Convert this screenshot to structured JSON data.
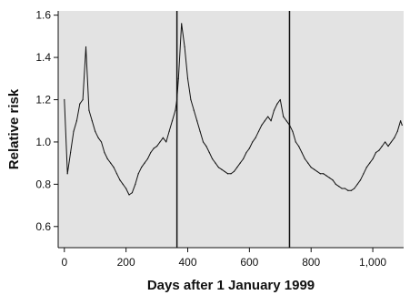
{
  "chart_data": {
    "type": "line",
    "title": "",
    "xlabel": "Days after 1 January 1999",
    "ylabel": "Relative risk",
    "xlim": [
      -20,
      1100
    ],
    "ylim": [
      0.5,
      1.62
    ],
    "x_ticks": [
      0,
      200,
      400,
      600,
      800,
      1000
    ],
    "x_tick_labels": [
      "0",
      "200",
      "400",
      "600",
      "800",
      "1,000"
    ],
    "y_ticks": [
      0.6,
      0.8,
      1.0,
      1.2,
      1.4,
      1.6
    ],
    "y_tick_labels": [
      "0.6",
      "0.8",
      "1.0",
      "1.2",
      "1.4",
      "1.6"
    ],
    "vertical_lines_x": [
      365,
      730
    ],
    "grid": false,
    "plot_background": "#e3e3e3",
    "line_color": "#111111",
    "series": [
      {
        "x": [
          0,
          10,
          20,
          30,
          40,
          50,
          60,
          70,
          80,
          90,
          100,
          110,
          120,
          130,
          140,
          150,
          160,
          170,
          180,
          190,
          200,
          210,
          220,
          230,
          240,
          250,
          260,
          270,
          280,
          290,
          300,
          310,
          320,
          330,
          340,
          350,
          360,
          365,
          370,
          380,
          390,
          400,
          410,
          420,
          430,
          440,
          450,
          460,
          470,
          480,
          490,
          500,
          510,
          520,
          530,
          540,
          550,
          560,
          570,
          580,
          590,
          600,
          610,
          620,
          630,
          640,
          650,
          660,
          670,
          680,
          690,
          700,
          710,
          720,
          730,
          740,
          750,
          760,
          770,
          780,
          790,
          800,
          810,
          820,
          830,
          840,
          850,
          860,
          870,
          880,
          890,
          900,
          910,
          920,
          930,
          940,
          950,
          960,
          970,
          980,
          990,
          1000,
          1010,
          1020,
          1030,
          1040,
          1050,
          1060,
          1070,
          1080,
          1090,
          1095
        ],
        "y": [
          1.2,
          0.85,
          0.95,
          1.05,
          1.1,
          1.18,
          1.2,
          1.45,
          1.15,
          1.1,
          1.05,
          1.02,
          1.0,
          0.95,
          0.92,
          0.9,
          0.88,
          0.85,
          0.82,
          0.8,
          0.78,
          0.75,
          0.76,
          0.8,
          0.85,
          0.88,
          0.9,
          0.92,
          0.95,
          0.97,
          0.98,
          1.0,
          1.02,
          1.0,
          1.05,
          1.1,
          1.15,
          1.2,
          1.3,
          1.56,
          1.45,
          1.3,
          1.2,
          1.15,
          1.1,
          1.05,
          1.0,
          0.98,
          0.95,
          0.92,
          0.9,
          0.88,
          0.87,
          0.86,
          0.85,
          0.85,
          0.86,
          0.88,
          0.9,
          0.92,
          0.95,
          0.97,
          1.0,
          1.02,
          1.05,
          1.08,
          1.1,
          1.12,
          1.1,
          1.15,
          1.18,
          1.2,
          1.12,
          1.1,
          1.08,
          1.05,
          1.0,
          0.98,
          0.95,
          0.92,
          0.9,
          0.88,
          0.87,
          0.86,
          0.85,
          0.85,
          0.84,
          0.83,
          0.82,
          0.8,
          0.79,
          0.78,
          0.78,
          0.77,
          0.77,
          0.78,
          0.8,
          0.82,
          0.85,
          0.88,
          0.9,
          0.92,
          0.95,
          0.96,
          0.98,
          1.0,
          0.98,
          1.0,
          1.02,
          1.05,
          1.1,
          1.08
        ]
      }
    ]
  }
}
